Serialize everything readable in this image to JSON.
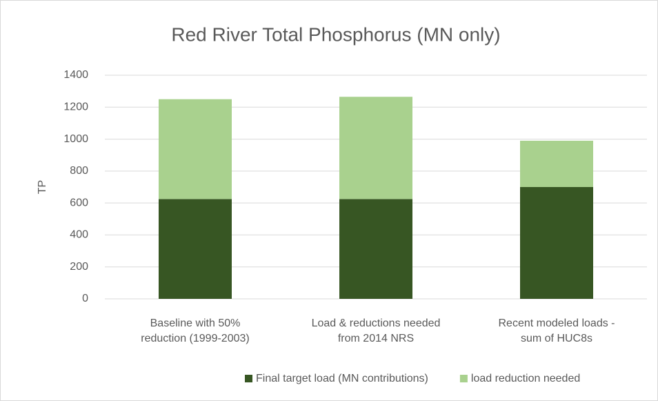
{
  "chart_data": {
    "type": "stacked_bar",
    "title": "Red River Total Phosphorus (MN only)",
    "y_label": "TP",
    "categories": [
      [
        "Baseline with 50%",
        "reduction (1999-2003)"
      ],
      [
        "Load & reductions needed",
        "from 2014 NRS"
      ],
      [
        "Recent modeled loads -",
        "sum of HUC8s"
      ]
    ],
    "series": [
      {
        "name": "Final target load (MN contributions)",
        "color": "#375623",
        "values": [
          625,
          625,
          700
        ]
      },
      {
        "name": "load reduction needed",
        "color": "#a9d18e",
        "values": [
          625,
          640,
          290
        ]
      }
    ],
    "ylim": [
      0,
      1400
    ],
    "yticks": [
      0,
      200,
      400,
      600,
      800,
      1000,
      1200,
      1400
    ],
    "grid": true,
    "legend": "bottom"
  }
}
